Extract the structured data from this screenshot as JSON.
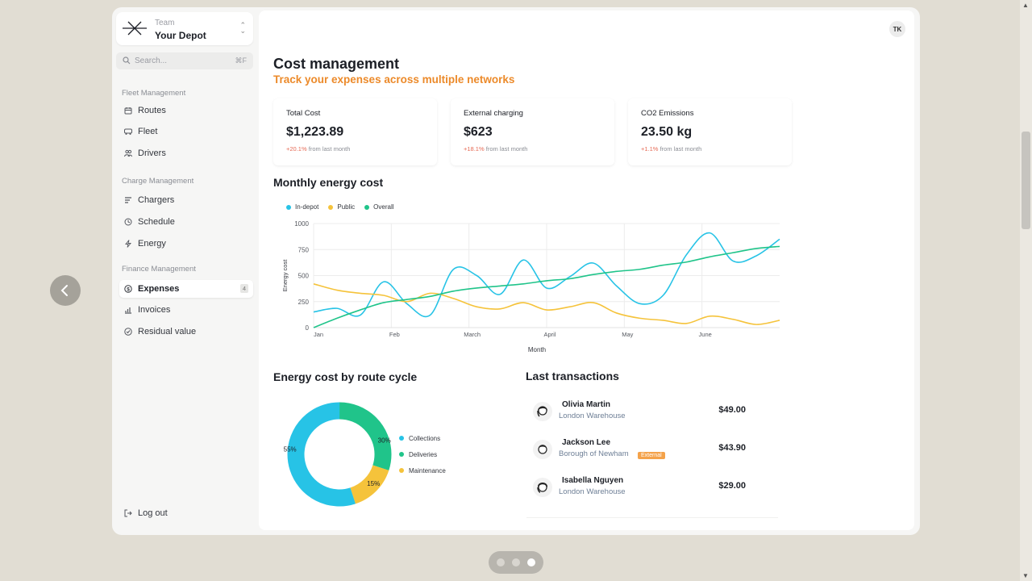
{
  "team": {
    "label": "Team",
    "name": "Your Depot"
  },
  "search": {
    "placeholder": "Search...",
    "shortcut": "⌘F"
  },
  "sidebar": {
    "sections": [
      {
        "title": "Fleet Management",
        "items": [
          {
            "label": "Routes",
            "icon": "calendar-icon"
          },
          {
            "label": "Fleet",
            "icon": "bus-icon"
          },
          {
            "label": "Drivers",
            "icon": "users-icon"
          }
        ]
      },
      {
        "title": "Charge Management",
        "items": [
          {
            "label": "Chargers",
            "icon": "bars-icon"
          },
          {
            "label": "Schedule",
            "icon": "clock-icon"
          },
          {
            "label": "Energy",
            "icon": "bolt-icon"
          }
        ]
      },
      {
        "title": "Finance Management",
        "items": [
          {
            "label": "Expenses",
            "icon": "dollar-circle-icon",
            "active": true,
            "badge": "4"
          },
          {
            "label": "Invoices",
            "icon": "chart-icon"
          },
          {
            "label": "Residual value",
            "icon": "check-circle-icon"
          }
        ]
      }
    ],
    "logout": "Log out"
  },
  "header": {
    "avatar": "TK"
  },
  "page": {
    "title": "Cost management",
    "subtitle": "Track your expenses across multiple networks"
  },
  "stats": [
    {
      "label": "Total Cost",
      "value": "$1,223.89",
      "delta": "+20.1%",
      "delta_suffix": "from last month"
    },
    {
      "label": "External charging",
      "value": "$623",
      "delta": "+18.1%",
      "delta_suffix": "from last month"
    },
    {
      "label": "CO2 Emissions",
      "value": "23.50 kg",
      "delta": "+1.1%",
      "delta_suffix": "from last month"
    }
  ],
  "monthly": {
    "title": "Monthly energy cost"
  },
  "donut_section": {
    "title": "Energy cost by route cycle"
  },
  "transactions": {
    "title": "Last transactions",
    "items": [
      {
        "name": "Olivia Martin",
        "location": "London Warehouse",
        "amount": "$49.00"
      },
      {
        "name": "Jackson Lee",
        "location": "Borough of Newham",
        "amount": "$43.90",
        "tag": "External"
      },
      {
        "name": "Isabella Nguyen",
        "location": "London Warehouse",
        "amount": "$29.00"
      }
    ]
  },
  "colors": {
    "accent": "#ec8a2a",
    "in_depot": "#27c3e6",
    "public": "#f5c33b",
    "overall": "#20c48a"
  },
  "chart_data": [
    {
      "type": "line",
      "title": "Monthly energy cost",
      "xlabel": "Month",
      "ylabel": "Energy cost",
      "xticks": [
        "Jan",
        "Feb",
        "March",
        "April",
        "May",
        "June"
      ],
      "yticks": [
        0,
        250,
        500,
        750,
        1000
      ],
      "ylim": [
        0,
        1000
      ],
      "grid": true,
      "legend": "top-left",
      "x": [
        0,
        0.3,
        0.6,
        0.9,
        1.2,
        1.5,
        1.8,
        2.1,
        2.4,
        2.7,
        3.0,
        3.3,
        3.6,
        3.9,
        4.2,
        4.5,
        4.8,
        5.1,
        5.4,
        5.7,
        6.0
      ],
      "series": [
        {
          "name": "In-depot",
          "color": "#27c3e6",
          "values": [
            150,
            185,
            120,
            440,
            230,
            120,
            560,
            500,
            320,
            650,
            380,
            490,
            620,
            400,
            230,
            310,
            700,
            910,
            640,
            690,
            850
          ]
        },
        {
          "name": "Public",
          "color": "#f5c33b",
          "values": [
            420,
            360,
            330,
            310,
            250,
            330,
            280,
            200,
            180,
            240,
            170,
            200,
            240,
            140,
            90,
            70,
            40,
            110,
            80,
            30,
            70
          ]
        },
        {
          "name": "Overall",
          "color": "#20c48a",
          "values": [
            0,
            90,
            170,
            240,
            270,
            300,
            350,
            380,
            400,
            420,
            450,
            470,
            510,
            540,
            560,
            600,
            630,
            680,
            720,
            760,
            780
          ]
        }
      ]
    },
    {
      "type": "pie",
      "title": "Energy cost by route cycle",
      "donut": true,
      "labels": [
        "Collections",
        "Deliveries",
        "Maintenance"
      ],
      "values": [
        55,
        30,
        15
      ],
      "data_labels": [
        "55%",
        "30%",
        "15%"
      ],
      "colors": [
        "#27c3e6",
        "#20c48a",
        "#f5c33b"
      ]
    }
  ]
}
